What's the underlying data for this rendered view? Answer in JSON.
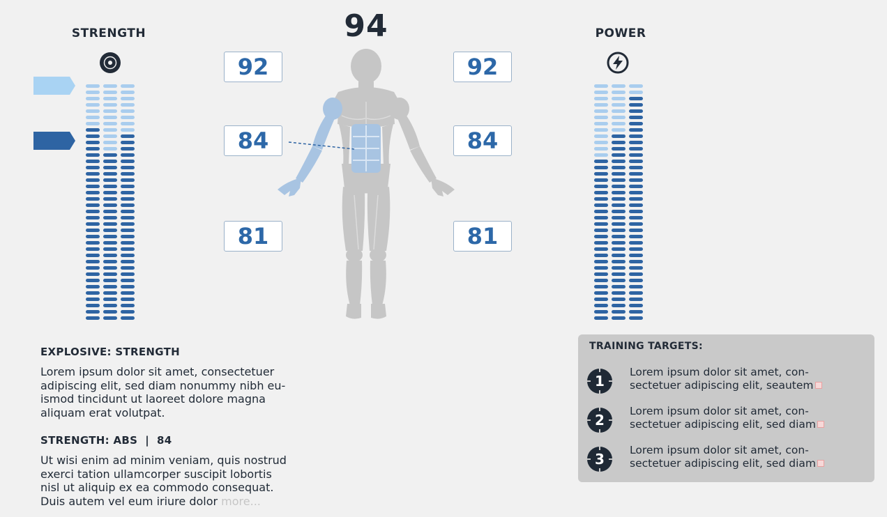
{
  "header": {
    "overall_score": "94",
    "left_title": "STRENGTH",
    "right_title": "POWER",
    "left_icon": "weight-plate-icon",
    "right_icon": "lightning-bolt-icon"
  },
  "score_boxes": {
    "left": [
      "92",
      "84",
      "81"
    ],
    "right": [
      "92",
      "84",
      "81"
    ]
  },
  "meters": {
    "strength": {
      "total_segments": 38,
      "filled_segments": [
        31,
        27,
        30
      ]
    },
    "power": {
      "total_segments": 38,
      "filled_segments": [
        26,
        30,
        36
      ]
    }
  },
  "colors": {
    "filled": "#2e64a3",
    "empty": "#a9cdee",
    "flag_light": "#a9d3f3",
    "flag_dark": "#2e64a3",
    "body_gray": "#c6c6c6",
    "highlight_blue": "#a8c4e2",
    "badge_dark": "#1f2935",
    "panel_bg": "#c9c9c9"
  },
  "details": {
    "heading1": "EXPLOSIVE: STRENGTH",
    "paragraph1": "Lorem ipsum dolor sit amet, consectetuer\nadipiscing elit, sed diam nonummy nibh eu-\nismod tincidunt ut laoreet dolore magna\naliquam erat volutpat.",
    "heading2": "STRENGTH: ABS  |  84",
    "paragraph2": "Ut wisi enim ad minim veniam, quis nostrud\nexerci tation ullamcorper suscipit lobortis\nnisl ut aliquip ex ea commodo consequat.\nDuis autem vel eum iriure dolor ",
    "more_label": "more..."
  },
  "training_targets": {
    "title": "TRAINING TARGETS:",
    "items": [
      {
        "number": "1",
        "text": "Lorem ipsum dolor sit amet, con-\nsectetuer adipiscing elit, seautem"
      },
      {
        "number": "2",
        "text": "Lorem ipsum dolor sit amet, con-\nsectetuer adipiscing elit, sed diam"
      },
      {
        "number": "3",
        "text": "Lorem ipsum dolor sit amet, con-\nsectetuer adipiscing elit, sed diam"
      }
    ]
  }
}
